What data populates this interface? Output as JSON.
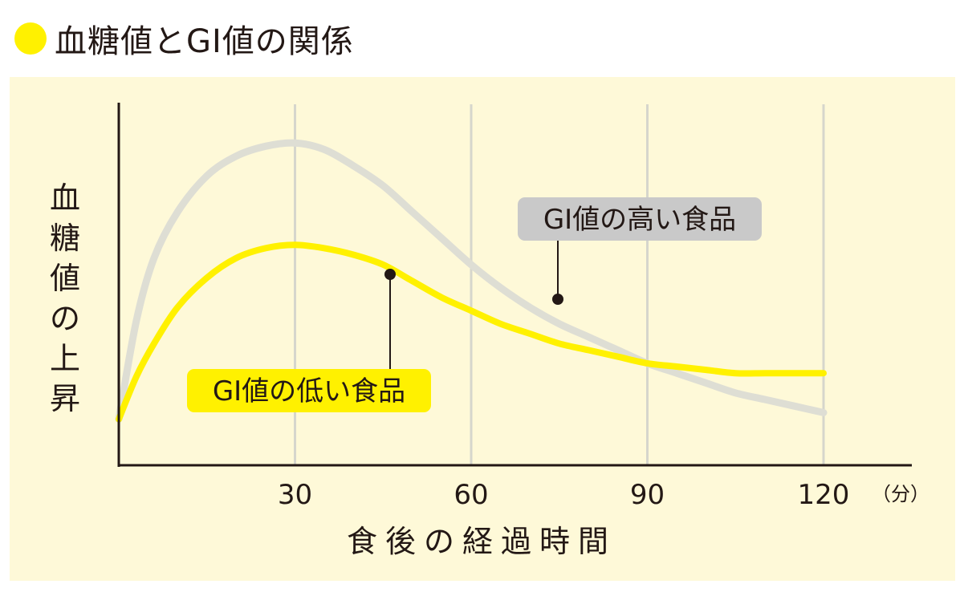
{
  "heading": {
    "title": "血糖値とGI値の関係",
    "accent_color": "#fff100"
  },
  "chart_data": {
    "type": "line",
    "title": "血糖値とGI値の関係",
    "ylabel": "血糖値の上昇",
    "xlabel": "食後の経過時間",
    "x_unit": "（分）",
    "x_ticks": [
      30,
      60,
      90,
      120
    ],
    "xlim": [
      0,
      120
    ],
    "ylim": [
      0,
      100
    ],
    "grid": "vertical",
    "series": [
      {
        "name": "GI値の高い食品",
        "color": "#deded4",
        "label_bg": "#c9c9c9",
        "x": [
          0,
          3,
          6,
          10,
          15,
          20,
          25,
          30,
          35,
          40,
          45,
          50,
          55,
          60,
          65,
          70,
          75,
          80,
          85,
          90,
          95,
          100,
          105,
          110,
          115,
          120
        ],
        "y": [
          14,
          44,
          63,
          77,
          88,
          94,
          97,
          98,
          96,
          91,
          85,
          77,
          69,
          61,
          54,
          48,
          43,
          39,
          35,
          31,
          28,
          25,
          22,
          20,
          18,
          16
        ]
      },
      {
        "name": "GI値の低い食品",
        "color": "#fff100",
        "label_bg": "#fff100",
        "x": [
          0,
          3,
          6,
          10,
          15,
          20,
          25,
          30,
          35,
          40,
          45,
          50,
          55,
          60,
          65,
          70,
          75,
          80,
          85,
          90,
          95,
          100,
          105,
          110,
          115,
          120
        ],
        "y": [
          14,
          27,
          37,
          48,
          57,
          63,
          66,
          67,
          66,
          64,
          61,
          56,
          51,
          47,
          43,
          40,
          37,
          35,
          33,
          31,
          30,
          29,
          28,
          28,
          28,
          28
        ]
      }
    ]
  }
}
